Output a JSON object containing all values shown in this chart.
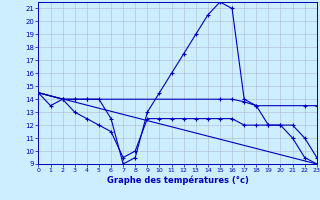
{
  "background_color": "#cceeff",
  "plot_bg_color": "#cceeff",
  "grid_color": "#aabbcc",
  "line_color": "#0000bb",
  "xlabel": "Graphe des températures (°c)",
  "ylim": [
    9,
    21.5
  ],
  "xlim": [
    0,
    23
  ],
  "yticks": [
    9,
    10,
    11,
    12,
    13,
    14,
    15,
    16,
    17,
    18,
    19,
    20,
    21
  ],
  "xticks": [
    0,
    1,
    2,
    3,
    4,
    5,
    6,
    7,
    8,
    9,
    10,
    11,
    12,
    13,
    14,
    15,
    16,
    17,
    18,
    19,
    20,
    21,
    22,
    23
  ],
  "lines": [
    {
      "x": [
        0,
        1,
        2,
        3,
        4,
        5,
        6,
        7,
        8,
        9,
        10,
        11,
        12,
        13,
        14,
        15,
        16,
        17,
        18,
        19,
        20,
        21,
        22,
        23
      ],
      "y": [
        14.5,
        13.5,
        14.0,
        14.0,
        14.0,
        14.0,
        12.5,
        9.0,
        9.5,
        13.0,
        14.5,
        16.0,
        17.5,
        19.0,
        20.5,
        21.5,
        21.0,
        14.0,
        13.5,
        12.0,
        12.0,
        11.0,
        9.5,
        9.0
      ]
    },
    {
      "x": [
        0,
        2,
        3,
        4,
        15,
        16,
        17,
        18,
        22,
        23
      ],
      "y": [
        14.5,
        14.0,
        14.0,
        14.0,
        14.0,
        14.0,
        13.8,
        13.5,
        13.5,
        13.5
      ]
    },
    {
      "x": [
        0,
        2,
        3,
        4,
        5,
        6,
        7,
        8,
        9,
        10,
        11,
        12,
        13,
        14,
        15,
        16,
        17,
        18,
        19,
        20,
        21,
        22,
        23
      ],
      "y": [
        14.5,
        14.0,
        13.0,
        12.5,
        12.0,
        11.5,
        9.5,
        10.0,
        12.5,
        12.5,
        12.5,
        12.5,
        12.5,
        12.5,
        12.5,
        12.5,
        12.0,
        12.0,
        12.0,
        12.0,
        12.0,
        11.0,
        9.5
      ]
    },
    {
      "x": [
        0,
        23
      ],
      "y": [
        14.5,
        9.0
      ]
    }
  ]
}
